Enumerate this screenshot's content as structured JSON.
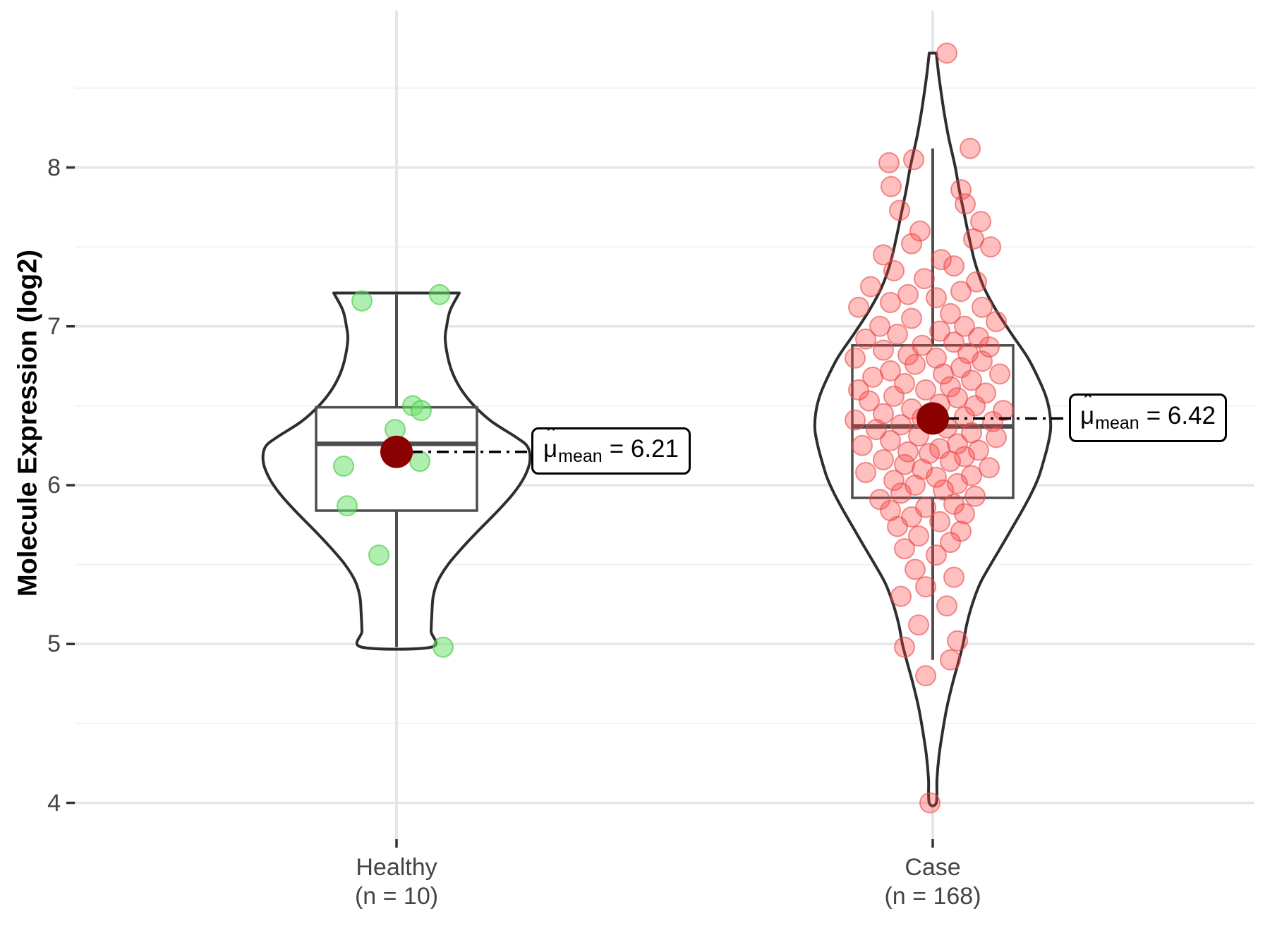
{
  "figure": {
    "y_title": "Molecule Expression (log2)"
  },
  "y_axis": {
    "ticks": [
      "8",
      "7",
      "6",
      "5",
      "4"
    ],
    "tick_values": [
      8,
      7,
      6,
      5,
      4
    ],
    "minor_values": [
      8.5,
      7.5,
      6.5,
      5.5,
      4.5
    ]
  },
  "x_axis": {
    "categories": [
      {
        "label": "Healthy",
        "sublabel": "(n = 10)"
      },
      {
        "label": "Case",
        "sublabel": "(n = 168)"
      }
    ]
  },
  "annotations": [
    {
      "mu": "μ",
      "hat": "ˆ",
      "subscript": "mean",
      "equals_value": "= 6.21",
      "value": 6.21
    },
    {
      "mu": "μ",
      "hat": "ˆ",
      "subscript": "mean",
      "equals_value": "= 6.42",
      "value": 6.42
    }
  ],
  "colors": {
    "background": "#ffffff",
    "grid_major": "#e6e6e6",
    "grid_minor": "#f2f2f2",
    "axis_text": "#454545",
    "tick_mark": "#333333",
    "violin_stroke": "#2e2e2e",
    "box_stroke": "#4d4d4d",
    "mean_dot": "#8b0000",
    "annotation_line": "#000000",
    "healthy_point_fill": "#6ee26e",
    "healthy_point_stroke": "#3fc43f",
    "case_point_fill": "#ff3d3d",
    "case_point_stroke": "#e84b4b"
  },
  "chart_data": {
    "type": "violin",
    "title": "",
    "xlabel": "",
    "ylabel": "Molecule Expression (log2)",
    "ylim": [
      3.77,
      8.99
    ],
    "grid": true,
    "legend": false,
    "groups": [
      {
        "name": "Healthy",
        "n": 10,
        "mean": 6.21,
        "box": {
          "q1": 5.84,
          "median": 6.26,
          "q3": 6.49,
          "whisker_low": 4.98,
          "whisker_high": 7.2
        },
        "points": [
          [
            7.16,
            -49
          ],
          [
            7.2,
            61
          ],
          [
            6.5,
            23
          ],
          [
            6.47,
            35
          ],
          [
            6.35,
            -2
          ],
          [
            6.15,
            33
          ],
          [
            6.12,
            -75
          ],
          [
            5.87,
            -70
          ],
          [
            5.56,
            -25
          ],
          [
            4.98,
            66
          ]
        ],
        "violin_profile": [
          [
            7.21,
            89
          ],
          [
            7.1,
            76
          ],
          [
            7.0,
            71
          ],
          [
            6.92,
            69
          ],
          [
            6.8,
            73
          ],
          [
            6.7,
            80
          ],
          [
            6.6,
            92
          ],
          [
            6.5,
            110
          ],
          [
            6.4,
            135
          ],
          [
            6.3,
            170
          ],
          [
            6.24,
            186
          ],
          [
            6.15,
            189
          ],
          [
            6.05,
            181
          ],
          [
            5.95,
            166
          ],
          [
            5.84,
            144
          ],
          [
            5.7,
            113
          ],
          [
            5.6,
            92
          ],
          [
            5.5,
            73
          ],
          [
            5.4,
            59
          ],
          [
            5.3,
            52
          ],
          [
            5.18,
            50
          ],
          [
            5.08,
            49
          ],
          [
            4.98,
            49
          ]
        ]
      },
      {
        "name": "Case",
        "n": 168,
        "mean": 6.42,
        "box": {
          "q1": 5.92,
          "median": 6.37,
          "q3": 6.88,
          "whisker_low": 4.9,
          "whisker_high": 8.12
        },
        "points": [
          [
            8.72,
            20
          ],
          [
            8.12,
            53
          ],
          [
            8.05,
            -27
          ],
          [
            8.03,
            -62
          ],
          [
            7.88,
            -59
          ],
          [
            7.86,
            40
          ],
          [
            7.77,
            46
          ],
          [
            7.73,
            -47
          ],
          [
            7.66,
            68
          ],
          [
            7.6,
            -18
          ],
          [
            7.55,
            58
          ],
          [
            7.52,
            -30
          ],
          [
            7.5,
            82
          ],
          [
            7.45,
            -70
          ],
          [
            7.42,
            12
          ],
          [
            7.38,
            30
          ],
          [
            7.35,
            -55
          ],
          [
            7.3,
            -12
          ],
          [
            7.28,
            62
          ],
          [
            7.25,
            -88
          ],
          [
            7.22,
            40
          ],
          [
            7.2,
            -35
          ],
          [
            7.18,
            5
          ],
          [
            7.15,
            -60
          ],
          [
            7.12,
            -105
          ],
          [
            7.12,
            70
          ],
          [
            7.08,
            25
          ],
          [
            7.05,
            -30
          ],
          [
            7.03,
            90
          ],
          [
            7.0,
            -75
          ],
          [
            7.0,
            45
          ],
          [
            6.97,
            10
          ],
          [
            6.95,
            -50
          ],
          [
            6.93,
            65
          ],
          [
            6.92,
            -95
          ],
          [
            6.9,
            30
          ],
          [
            6.88,
            -15
          ],
          [
            6.87,
            80
          ],
          [
            6.85,
            -70
          ],
          [
            6.83,
            50
          ],
          [
            6.82,
            -35
          ],
          [
            6.8,
            5
          ],
          [
            6.8,
            -110
          ],
          [
            6.78,
            70
          ],
          [
            6.76,
            -25
          ],
          [
            6.74,
            40
          ],
          [
            6.72,
            -60
          ],
          [
            6.7,
            15
          ],
          [
            6.7,
            95
          ],
          [
            6.68,
            -85
          ],
          [
            6.66,
            55
          ],
          [
            6.64,
            -40
          ],
          [
            6.62,
            25
          ],
          [
            6.6,
            -10
          ],
          [
            6.6,
            -105
          ],
          [
            6.58,
            75
          ],
          [
            6.56,
            -55
          ],
          [
            6.55,
            35
          ],
          [
            6.53,
            -90
          ],
          [
            6.51,
            10
          ],
          [
            6.5,
            60
          ],
          [
            6.48,
            -30
          ],
          [
            6.47,
            100
          ],
          [
            6.45,
            -70
          ],
          [
            6.43,
            45
          ],
          [
            6.42,
            -15
          ],
          [
            6.41,
            -110
          ],
          [
            6.4,
            85
          ],
          [
            6.38,
            -45
          ],
          [
            6.36,
            20
          ],
          [
            6.35,
            -80
          ],
          [
            6.33,
            55
          ],
          [
            6.31,
            -20
          ],
          [
            6.3,
            90
          ],
          [
            6.28,
            -60
          ],
          [
            6.26,
            35
          ],
          [
            6.25,
            -100
          ],
          [
            6.23,
            10
          ],
          [
            6.22,
            65
          ],
          [
            6.21,
            -35
          ],
          [
            6.2,
            -5
          ],
          [
            6.18,
            45
          ],
          [
            6.16,
            -70
          ],
          [
            6.15,
            25
          ],
          [
            6.13,
            -40
          ],
          [
            6.11,
            80
          ],
          [
            6.1,
            -15
          ],
          [
            6.08,
            -95
          ],
          [
            6.06,
            55
          ],
          [
            6.05,
            5
          ],
          [
            6.03,
            -55
          ],
          [
            6.01,
            35
          ],
          [
            6.0,
            -25
          ],
          [
            5.97,
            15
          ],
          [
            5.95,
            -45
          ],
          [
            5.93,
            60
          ],
          [
            5.91,
            -75
          ],
          [
            5.88,
            30
          ],
          [
            5.86,
            -10
          ],
          [
            5.84,
            -60
          ],
          [
            5.82,
            45
          ],
          [
            5.8,
            -30
          ],
          [
            5.77,
            10
          ],
          [
            5.74,
            -50
          ],
          [
            5.71,
            40
          ],
          [
            5.68,
            -20
          ],
          [
            5.64,
            25
          ],
          [
            5.6,
            -40
          ],
          [
            5.56,
            5
          ],
          [
            5.47,
            -25
          ],
          [
            5.42,
            30
          ],
          [
            5.36,
            -10
          ],
          [
            5.3,
            -45
          ],
          [
            5.24,
            20
          ],
          [
            5.12,
            -20
          ],
          [
            5.02,
            35
          ],
          [
            4.98,
            -40
          ],
          [
            4.9,
            25
          ],
          [
            4.8,
            -10
          ],
          [
            4.0,
            -4
          ]
        ],
        "violin_profile": [
          [
            8.72,
            5
          ],
          [
            8.6,
            8
          ],
          [
            8.5,
            11
          ],
          [
            8.35,
            16
          ],
          [
            8.2,
            22
          ],
          [
            8.1,
            27
          ],
          [
            8.0,
            32
          ],
          [
            7.85,
            38
          ],
          [
            7.7,
            45
          ],
          [
            7.55,
            52
          ],
          [
            7.4,
            60
          ],
          [
            7.25,
            72
          ],
          [
            7.1,
            90
          ],
          [
            6.95,
            112
          ],
          [
            6.8,
            135
          ],
          [
            6.65,
            152
          ],
          [
            6.55,
            161
          ],
          [
            6.45,
            166
          ],
          [
            6.35,
            167
          ],
          [
            6.25,
            163
          ],
          [
            6.15,
            157
          ],
          [
            6.05,
            150
          ],
          [
            5.95,
            140
          ],
          [
            5.85,
            128
          ],
          [
            5.75,
            115
          ],
          [
            5.62,
            98
          ],
          [
            5.5,
            82
          ],
          [
            5.38,
            67
          ],
          [
            5.25,
            56
          ],
          [
            5.12,
            48
          ],
          [
            5.0,
            43
          ],
          [
            4.88,
            36
          ],
          [
            4.75,
            28
          ],
          [
            4.6,
            20
          ],
          [
            4.45,
            14
          ],
          [
            4.3,
            9
          ],
          [
            4.15,
            6
          ],
          [
            4.0,
            5
          ]
        ]
      }
    ]
  }
}
